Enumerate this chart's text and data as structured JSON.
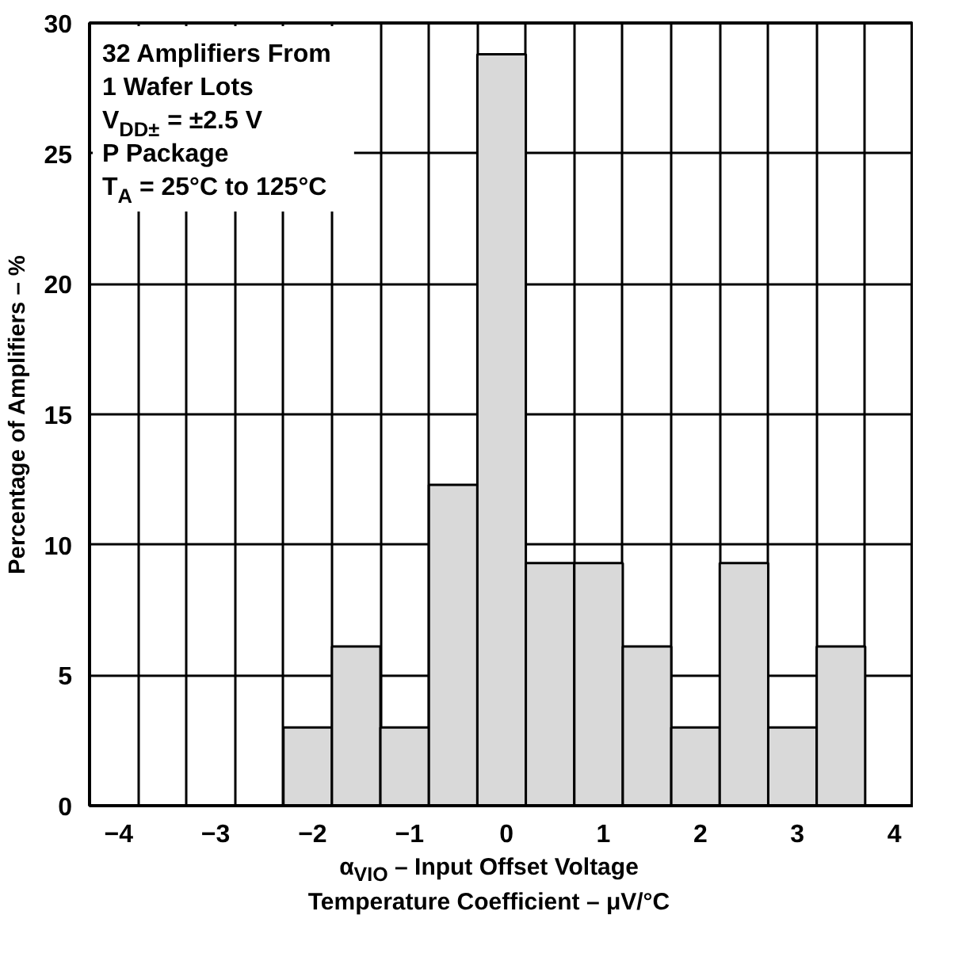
{
  "chart_data": {
    "type": "histogram",
    "xlabel": "α$_{VIO}$ – Input Offset Voltage\nTemperature Coefficient – μV/°C",
    "ylabel": "Percentage of Amplifiers – %",
    "bins": [
      -4.3,
      -3.8,
      -3.3,
      -2.8,
      -2.3,
      -1.8,
      -1.3,
      -0.8,
      -0.3,
      0.2,
      0.7,
      1.2,
      1.7,
      2.2,
      2.7,
      3.2,
      3.7
    ],
    "values": [
      0,
      0,
      0,
      0,
      3.0,
      6.1,
      3.0,
      12.3,
      28.8,
      9.3,
      9.3,
      6.1,
      3.0,
      9.3,
      3.0,
      6.1
    ],
    "color": "#d9d9d9",
    "xlim": [
      -4.3,
      4.2
    ],
    "ylim": [
      0,
      30
    ],
    "xticks": [
      {
        "value": -4.3,
        "label": null
      },
      {
        "value": -3.8,
        "label": null
      },
      {
        "value": -3.3,
        "label": null
      },
      {
        "value": -2.8,
        "label": null
      },
      {
        "value": -2.3,
        "label": null
      },
      {
        "value": -1.8,
        "label": null
      },
      {
        "value": -1.3,
        "label": null
      },
      {
        "value": -0.8,
        "label": null
      },
      {
        "value": -0.3,
        "label": null
      },
      {
        "value": 0.2,
        "label": null
      },
      {
        "value": 0.7,
        "label": null
      },
      {
        "value": 1.2,
        "label": null
      },
      {
        "value": 1.7,
        "label": null
      },
      {
        "value": 2.2,
        "label": null
      },
      {
        "value": 2.7,
        "label": null
      },
      {
        "value": 3.2,
        "label": null
      },
      {
        "value": 3.7,
        "label": null
      },
      {
        "value": -4,
        "label": "−4"
      },
      {
        "value": -3,
        "label": "−3"
      },
      {
        "value": -2,
        "label": "−2"
      },
      {
        "value": -1,
        "label": "−1"
      },
      0,
      1,
      2,
      3,
      4
    ],
    "yticks": [
      0,
      5,
      10,
      15,
      20,
      25,
      30
    ],
    "grid": true,
    "annotations": [
      "32 Amplifiers From\n1 Wafer Lots\nV$_{DD±}$ = ±2.5 V\nP Package\nT$_{A}$ = 25°C to 125°C"
    ]
  }
}
